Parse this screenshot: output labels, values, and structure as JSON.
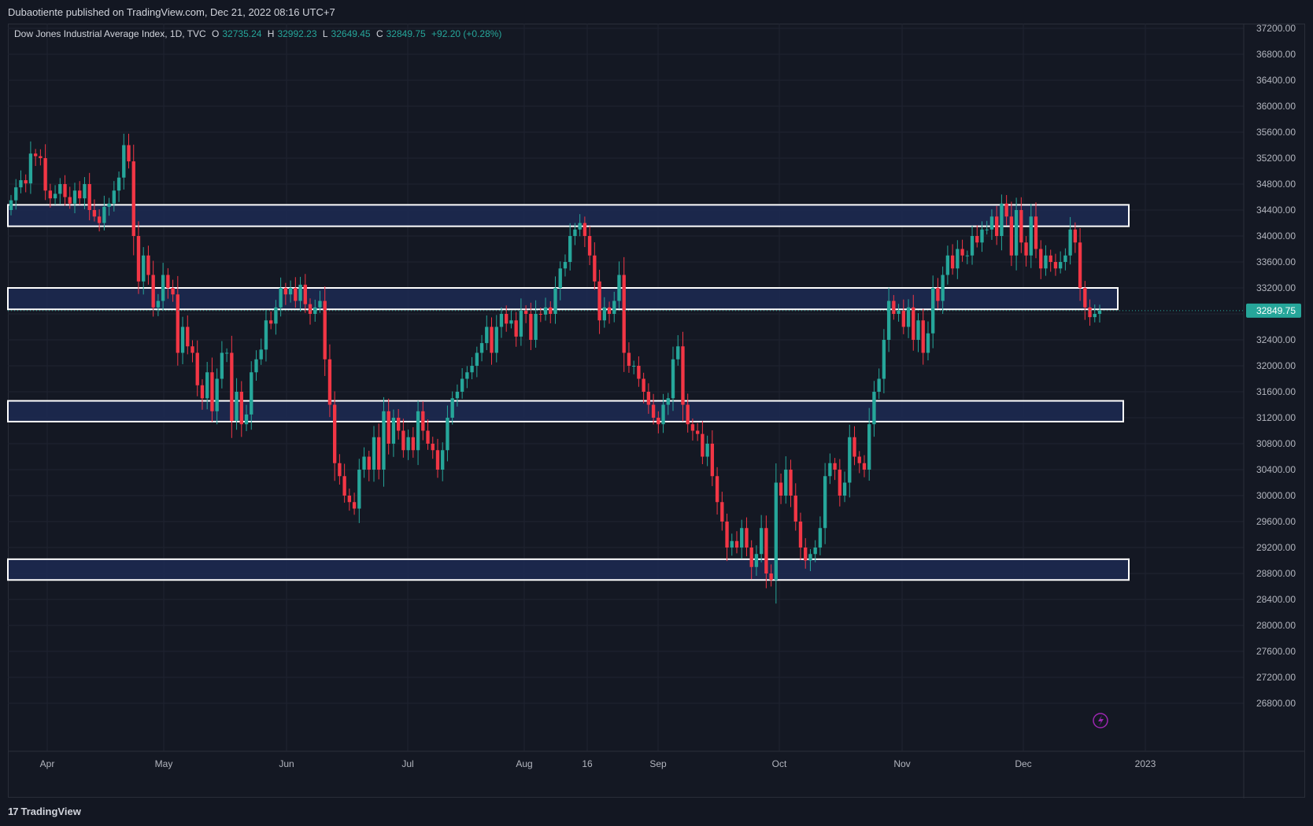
{
  "header": {
    "published": "Dubaotiente published on TradingView.com, Dec 21, 2022 08:16 UTC+7"
  },
  "legend": {
    "symbol": "Dow Jones Industrial Average Index, 1D, TVC",
    "o_label": "O",
    "o_value": "32735.24",
    "h_label": "H",
    "h_value": "32992.23",
    "l_label": "L",
    "l_value": "32649.45",
    "c_label": "C",
    "c_value": "32849.75",
    "change": "+92.20 (+0.28%)"
  },
  "footer": {
    "brand": "TradingView",
    "brand_mark": "17"
  },
  "colors": {
    "background": "#131722",
    "up": "#26a69a",
    "down": "#f23645",
    "zone_fill": "#1c2a52",
    "zone_border": "#ffffff",
    "last_price_bg": "#26a69a",
    "grid": "#1f2330",
    "axis_text": "#b2b5be"
  },
  "chart_data": {
    "type": "candlestick",
    "symbol": "Dow Jones Industrial Average Index",
    "interval": "1D",
    "last_price": 32849.75,
    "last_price_label": "32849.75",
    "y_range": [
      26500,
      37400
    ],
    "grid": true,
    "y_ticks": [
      "37200.00",
      "36800.00",
      "36400.00",
      "36000.00",
      "35600.00",
      "35200.00",
      "34800.00",
      "34400.00",
      "34000.00",
      "33600.00",
      "33200.00",
      "32800.00",
      "32400.00",
      "32000.00",
      "31600.00",
      "31200.00",
      "30800.00",
      "30400.00",
      "30000.00",
      "29600.00",
      "29200.00",
      "28800.00",
      "28400.00",
      "28000.00",
      "27600.00",
      "27200.00",
      "26800.00"
    ],
    "x_ticks": [
      "Apr",
      "May",
      "Jun",
      "Jul",
      "Aug",
      "16",
      "Sep",
      "Oct",
      "Nov",
      "Dec",
      "2023"
    ],
    "zones": [
      {
        "from_date": "2022-03-22",
        "to_date": "2022-12-29",
        "low": 34150,
        "high": 34480
      },
      {
        "from_date": "2022-03-22",
        "to_date": "2022-12-27",
        "low": 32870,
        "high": 33200
      },
      {
        "from_date": "2022-03-22",
        "to_date": "2022-12-28",
        "low": 31140,
        "high": 31460
      },
      {
        "from_date": "2022-03-22",
        "to_date": "2022-12-29",
        "low": 28700,
        "high": 29020
      }
    ],
    "closes": [
      34550,
      34750,
      34860,
      34810,
      35270,
      35230,
      35200,
      34700,
      34580,
      34650,
      34800,
      34600,
      34500,
      34700,
      34580,
      34800,
      34400,
      34300,
      34200,
      34450,
      34500,
      34700,
      34900,
      35400,
      35150,
      34000,
      33300,
      33700,
      33400,
      32900,
      33000,
      33400,
      33200,
      33100,
      32200,
      32600,
      32300,
      32200,
      31700,
      31500,
      31900,
      31300,
      31800,
      32200,
      32200,
      31150,
      31600,
      31100,
      31250,
      31900,
      32100,
      32250,
      32700,
      32650,
      32900,
      33200,
      33100,
      33200,
      33000,
      33250,
      32950,
      32800,
      32900,
      33000,
      32100,
      31400,
      30500,
      30300,
      30000,
      29900,
      29800,
      30400,
      30600,
      30400,
      30900,
      30400,
      31300,
      30800,
      31200,
      31000,
      30700,
      30900,
      30700,
      31300,
      31000,
      30800,
      30700,
      30400,
      30700,
      31200,
      31500,
      31600,
      31800,
      31900,
      32000,
      32200,
      32350,
      32600,
      32200,
      32600,
      32800,
      32650,
      32700,
      32450,
      32850,
      32800,
      32400,
      32800,
      32790,
      32900,
      32800,
      33200,
      33500,
      33600,
      34000,
      34100,
      34200,
      34000,
      33700,
      33300,
      32700,
      32900,
      32800,
      33000,
      33400,
      32200,
      32000,
      32000,
      31800,
      31600,
      31400,
      31200,
      31100,
      31400,
      31500,
      32100,
      32300,
      31400,
      31100,
      31000,
      30950,
      30600,
      30800,
      30300,
      29900,
      29600,
      29200,
      29300,
      29200,
      29500,
      29200,
      28900,
      29100,
      29500,
      28800,
      28700,
      30200,
      30000,
      30400,
      30000,
      29600,
      29200,
      29000,
      29100,
      29200,
      29500,
      30300,
      30500,
      30400,
      30000,
      30200,
      30900,
      30600,
      30500,
      30400,
      31100,
      31600,
      31800,
      32400,
      33000,
      32800,
      32850,
      32600,
      32900,
      32400,
      32700,
      32200,
      32500,
      33200,
      33000,
      33400,
      33700,
      33500,
      33800,
      33700,
      33700,
      34000,
      33900,
      34100,
      34100,
      34300,
      34000,
      34500,
      34300,
      33700,
      34400,
      33900,
      33700,
      34300,
      33800,
      33500,
      33700,
      33600,
      33500,
      33600,
      33700,
      34100,
      33900,
      33200,
      32900,
      32750,
      32800,
      32850
    ],
    "watermark_icon": "lightning-icon"
  }
}
